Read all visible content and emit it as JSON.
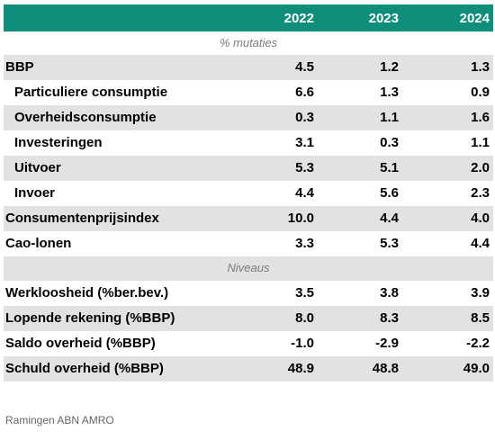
{
  "header": {
    "years": [
      "2022",
      "2023",
      "2024"
    ]
  },
  "sections": {
    "mutaties": "% mutaties",
    "niveaus": "Niveaus"
  },
  "rows_mutaties": [
    {
      "label": "BBP",
      "values": [
        "4.5",
        "1.2",
        "1.3"
      ]
    },
    {
      "label": "Particuliere consumptie",
      "values": [
        "6.6",
        "1.3",
        "0.9"
      ]
    },
    {
      "label": "Overheidsconsumptie",
      "values": [
        "0.3",
        "1.1",
        "1.6"
      ]
    },
    {
      "label": "Investeringen",
      "values": [
        "3.1",
        "0.3",
        "1.1"
      ]
    },
    {
      "label": "Uitvoer",
      "values": [
        "5.3",
        "5.1",
        "2.0"
      ]
    },
    {
      "label": "Invoer",
      "values": [
        "4.4",
        "5.6",
        "2.3"
      ]
    },
    {
      "label": "Consumentenprijsindex",
      "values": [
        "10.0",
        "4.4",
        "4.0"
      ]
    },
    {
      "label": "Cao-lonen",
      "values": [
        "3.3",
        "5.3",
        "4.4"
      ]
    }
  ],
  "rows_niveaus": [
    {
      "label": "Werkloosheid (%ber.bev.)",
      "values": [
        "3.5",
        "3.8",
        "3.9"
      ]
    },
    {
      "label": "Lopende rekening (%BBP)",
      "values": [
        "8.0",
        "8.3",
        "8.5"
      ]
    },
    {
      "label": "Saldo overheid (%BBP)",
      "values": [
        "-1.0",
        "-2.9",
        "-2.2"
      ]
    },
    {
      "label": "Schuld overheid (%BBP)",
      "values": [
        "48.9",
        "48.8",
        "49.0"
      ]
    }
  ],
  "source": "Ramingen ABN AMRO",
  "colors": {
    "header_bg": "#0f8e7a",
    "shade": "#e2e2e2"
  }
}
